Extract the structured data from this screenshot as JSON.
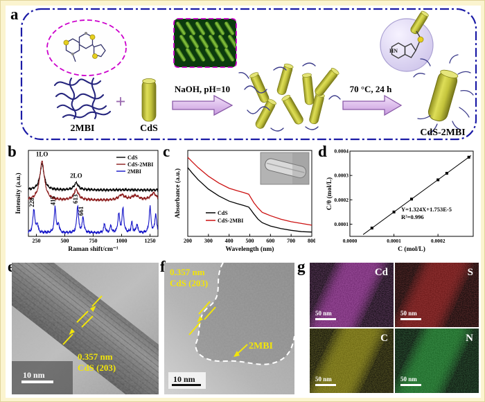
{
  "panels": {
    "a": "a",
    "b": "b",
    "c": "c",
    "d": "d",
    "e": "e",
    "f": "f",
    "g": "g"
  },
  "scheme": {
    "reactant1": "2MBI",
    "plus": "+",
    "reactant2": "CdS",
    "arrow1": "NaOH, pH=10",
    "arrow2": "70 °C, 24 h",
    "product": "CdS-2MBI",
    "hn_label": "HN"
  },
  "chart_data": [
    {
      "id": "raman",
      "type": "line",
      "xlabel": "Raman shift/cm⁻¹",
      "ylabel": "Intensity (a.u.)",
      "xlim": [
        180,
        1320
      ],
      "xticks": [
        250,
        500,
        750,
        1000,
        1250
      ],
      "legend_position": "top-right",
      "series": [
        {
          "name": "CdS",
          "color": "#000000",
          "offset": 0.54,
          "peaks": [
            [
              300,
              0.3,
              22
            ],
            [
              600,
              0.08,
              22
            ]
          ]
        },
        {
          "name": "CdS-2MBI",
          "color": "#8b1a1a",
          "offset": 0.42,
          "peaks": [
            [
              300,
              0.45,
              25
            ],
            [
              600,
              0.12,
              25
            ],
            [
              1000,
              0.06,
              30
            ],
            [
              1120,
              0.05,
              40
            ],
            [
              1280,
              0.08,
              30
            ]
          ]
        },
        {
          "name": "2MBI",
          "color": "#1414c8",
          "offset": 0.04,
          "peaks": [
            [
              228,
              0.28,
              10
            ],
            [
              258,
              0.1,
              8
            ],
            [
              415,
              0.3,
              9
            ],
            [
              445,
              0.1,
              8
            ],
            [
              613,
              0.32,
              9
            ],
            [
              661,
              0.18,
              9
            ],
            [
              850,
              0.1,
              9
            ],
            [
              905,
              0.08,
              8
            ],
            [
              975,
              0.22,
              9
            ],
            [
              1012,
              0.28,
              9
            ],
            [
              1090,
              0.12,
              8
            ],
            [
              1135,
              0.1,
              8
            ],
            [
              1250,
              0.3,
              9
            ],
            [
              1300,
              0.22,
              9
            ]
          ]
        }
      ],
      "annotations": [
        {
          "text": "1LO",
          "x": 300,
          "y": 0.93,
          "rotate": 0
        },
        {
          "text": "2LO",
          "x": 600,
          "y": 0.68,
          "rotate": 0
        },
        {
          "text": "228",
          "x": 228,
          "y": 0.34,
          "rotate": -90
        },
        {
          "text": "415",
          "x": 415,
          "y": 0.36,
          "rotate": -90
        },
        {
          "text": "613",
          "x": 613,
          "y": 0.38,
          "rotate": -90
        },
        {
          "text": "661",
          "x": 661,
          "y": 0.24,
          "rotate": -90
        }
      ]
    },
    {
      "id": "absorbance",
      "type": "line",
      "xlabel": "Wavelength (nm)",
      "ylabel": "Absorbance (a.u.)",
      "xlim": [
        200,
        800
      ],
      "xticks": [
        200,
        300,
        400,
        500,
        600,
        700,
        800
      ],
      "legend_position": "center-left",
      "series": [
        {
          "name": "CdS",
          "color": "#000000",
          "points": [
            [
              200,
              0.8
            ],
            [
              220,
              0.74
            ],
            [
              250,
              0.66
            ],
            [
              300,
              0.55
            ],
            [
              350,
              0.47
            ],
            [
              400,
              0.41
            ],
            [
              440,
              0.38
            ],
            [
              470,
              0.36
            ],
            [
              495,
              0.34
            ],
            [
              505,
              0.31
            ],
            [
              520,
              0.26
            ],
            [
              540,
              0.2
            ],
            [
              560,
              0.16
            ],
            [
              600,
              0.12
            ],
            [
              650,
              0.09
            ],
            [
              700,
              0.07
            ],
            [
              750,
              0.055
            ],
            [
              800,
              0.05
            ]
          ]
        },
        {
          "name": "CdS-2MBI",
          "color": "#cc1111",
          "points": [
            [
              200,
              0.92
            ],
            [
              220,
              0.87
            ],
            [
              250,
              0.8
            ],
            [
              300,
              0.7
            ],
            [
              350,
              0.62
            ],
            [
              400,
              0.56
            ],
            [
              440,
              0.53
            ],
            [
              470,
              0.51
            ],
            [
              495,
              0.49
            ],
            [
              505,
              0.45
            ],
            [
              520,
              0.39
            ],
            [
              540,
              0.33
            ],
            [
              560,
              0.28
            ],
            [
              600,
              0.24
            ],
            [
              650,
              0.2
            ],
            [
              700,
              0.17
            ],
            [
              750,
              0.15
            ],
            [
              800,
              0.13
            ]
          ]
        }
      ]
    },
    {
      "id": "adsorption",
      "type": "scatter",
      "xlabel": "C (mol/L)",
      "ylabel": "C/θ (mol/L)",
      "xlim": [
        0,
        0.00028
      ],
      "ylim": [
        5e-05,
        0.0004
      ],
      "xticks": [
        0,
        0.0001,
        0.0002
      ],
      "yticks": [
        0.0001,
        0.0002,
        0.0003,
        0.0004
      ],
      "points": [
        [
          5e-05,
          8.4e-05
        ],
        [
          0.0001,
          0.00015
        ],
        [
          0.00014,
          0.000203
        ],
        [
          0.0002,
          0.000282
        ],
        [
          0.00022,
          0.000309
        ],
        [
          0.00027,
          0.000375
        ]
      ],
      "fit": {
        "slope": 1.324,
        "intercept": 1.753e-05,
        "label_line1": "Y=1.324X+1.753E-5",
        "label_line2": "R²=0.996"
      }
    }
  ],
  "tem_e": {
    "d_spacing": "0.357 nm",
    "plane": "CdS (203)",
    "scalebar": "10 nm"
  },
  "tem_f": {
    "d_spacing": "0.357 nm",
    "plane": "CdS (203)",
    "coating": "2MBI",
    "scalebar": "10 nm"
  },
  "maps": {
    "scalebar": "50 nm",
    "tiles": [
      {
        "element": "Cd",
        "color": "#c040c0"
      },
      {
        "element": "S",
        "color": "#b02020"
      },
      {
        "element": "C",
        "color": "#b0a818"
      },
      {
        "element": "N",
        "color": "#28a838"
      }
    ]
  }
}
